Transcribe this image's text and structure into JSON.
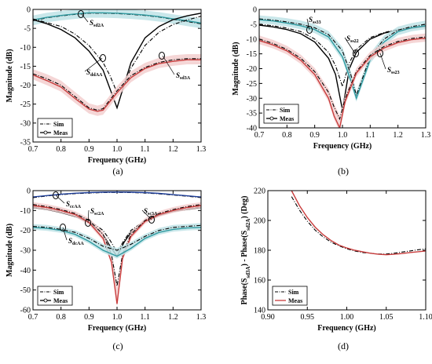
{
  "chart_data": [
    {
      "id": "a",
      "type": "line",
      "panel_label": "(a)",
      "xlabel": "Frequency (GHz)",
      "ylabel": "Magnitude (dB)",
      "xlim": [
        0.7,
        1.3
      ],
      "ylim": [
        -35,
        0
      ],
      "xticks": [
        "0.7",
        "0.8",
        "0.9",
        "1.0",
        "1.1",
        "1.2",
        "1.3"
      ],
      "yticks": [
        "0",
        "-5",
        "-10",
        "-15",
        "-20",
        "-25",
        "-30",
        "-35"
      ],
      "legend": {
        "position": "bottom-left",
        "entries": [
          "Sim",
          "Meas"
        ]
      },
      "annotations": [
        {
          "main": "S",
          "sub": "sd2A"
        },
        {
          "main": "S",
          "sub": "ddAA"
        },
        {
          "main": "S",
          "sub": "sd3A"
        }
      ],
      "series": [
        {
          "label": "S_sd2A",
          "color": "#2f9aa0",
          "band_color": "#bfe3e6",
          "x": [
            0.7,
            0.75,
            0.8,
            0.85,
            0.9,
            0.95,
            1.0,
            1.05,
            1.1,
            1.15,
            1.2,
            1.25,
            1.3
          ],
          "sim": [
            -3.0,
            -2.2,
            -1.7,
            -1.3,
            -1.0,
            -1.0,
            -1.1,
            -1.3,
            -1.6,
            -2.0,
            -2.6,
            -3.2,
            -3.8
          ],
          "meas": [
            -2.8,
            -2.1,
            -1.6,
            -1.2,
            -0.9,
            -0.9,
            -1.0,
            -1.2,
            -1.5,
            -1.9,
            -2.5,
            -3.0,
            -3.6
          ]
        },
        {
          "label": "S_ddAA",
          "color": "#000000",
          "band_color": "",
          "x": [
            0.7,
            0.75,
            0.8,
            0.85,
            0.9,
            0.95,
            0.975,
            1.0,
            1.025,
            1.05,
            1.1,
            1.15,
            1.2,
            1.25,
            1.3
          ],
          "sim": [
            -2.5,
            -3.5,
            -4.5,
            -6.5,
            -9.5,
            -14.0,
            -17.5,
            -22.0,
            -20.0,
            -15.5,
            -9.5,
            -6.0,
            -4.0,
            -2.8,
            -1.8
          ],
          "meas": [
            -2.7,
            -3.8,
            -5.3,
            -7.5,
            -11.0,
            -16.0,
            -21.0,
            -26.0,
            -20.0,
            -14.0,
            -7.5,
            -4.5,
            -2.7,
            -1.7,
            -1.0
          ]
        },
        {
          "label": "S_sd3A",
          "color": "#c83c3c",
          "band_color": "#f3cfcf",
          "x": [
            0.7,
            0.75,
            0.8,
            0.85,
            0.9,
            0.93,
            0.95,
            1.0,
            1.05,
            1.1,
            1.15,
            1.2,
            1.25,
            1.3
          ],
          "sim": [
            -17.0,
            -18.3,
            -20.0,
            -23.0,
            -26.0,
            -26.6,
            -26.2,
            -21.5,
            -17.5,
            -15.3,
            -14.0,
            -13.3,
            -13.0,
            -13.0
          ],
          "meas": [
            -17.3,
            -18.8,
            -20.5,
            -23.5,
            -26.3,
            -26.9,
            -26.6,
            -22.0,
            -18.0,
            -15.6,
            -14.3,
            -13.7,
            -13.3,
            -13.3
          ]
        }
      ]
    },
    {
      "id": "b",
      "type": "line",
      "panel_label": "(b)",
      "xlabel": "Frequency (GHz)",
      "ylabel": "Magnitude (dB)",
      "xlim": [
        0.7,
        1.3
      ],
      "ylim": [
        -40,
        0
      ],
      "xticks": [
        "0.7",
        "0.8",
        "0.9",
        "1.0",
        "1.1",
        "1.2",
        "1.3"
      ],
      "yticks": [
        "0",
        "-5",
        "-10",
        "-15",
        "-20",
        "-25",
        "-30",
        "-35",
        "-40"
      ],
      "legend": {
        "position": "bottom-left",
        "entries": [
          "Sim",
          "Meas"
        ]
      },
      "annotations": [
        {
          "main": "S",
          "sub": "ss33"
        },
        {
          "main": "S",
          "sub": "ss22"
        },
        {
          "main": "S",
          "sub": "ss23"
        }
      ],
      "series": [
        {
          "label": "S_ss33",
          "color": "#000000",
          "band_color": "",
          "x": [
            0.7,
            0.75,
            0.8,
            0.85,
            0.9,
            0.95,
            0.975,
            1.0,
            1.025,
            1.05,
            1.1,
            1.15,
            1.2,
            1.25,
            1.3
          ],
          "sim": [
            -5.0,
            -5.5,
            -6.3,
            -7.5,
            -10.0,
            -14.5,
            -19.0,
            -26.0,
            -18.0,
            -13.5,
            -9.5,
            -7.8,
            -6.7,
            -6.0,
            -5.5
          ],
          "meas": [
            -5.3,
            -5.9,
            -6.8,
            -8.2,
            -11.0,
            -16.5,
            -22.0,
            -34.0,
            -20.0,
            -14.5,
            -10.0,
            -8.0,
            -7.0,
            -6.3,
            -5.8
          ]
        },
        {
          "label": "S_ss22",
          "color": "#2f9aa0",
          "band_color": "#bfe3e6",
          "x": [
            0.7,
            0.75,
            0.8,
            0.85,
            0.9,
            0.95,
            1.0,
            1.03,
            1.05,
            1.1,
            1.15,
            1.2,
            1.25,
            1.3
          ],
          "sim": [
            -3.2,
            -3.6,
            -4.2,
            -5.0,
            -6.2,
            -8.5,
            -14.0,
            -22.0,
            -29.0,
            -16.0,
            -10.0,
            -7.0,
            -5.8,
            -5.0
          ],
          "meas": [
            -3.5,
            -3.9,
            -4.6,
            -5.5,
            -6.8,
            -9.3,
            -16.0,
            -24.0,
            -30.0,
            -17.0,
            -11.0,
            -7.5,
            -6.2,
            -5.5
          ]
        },
        {
          "label": "S_ss23",
          "color": "#c83c3c",
          "band_color": "#f3cfcf",
          "x": [
            0.7,
            0.75,
            0.8,
            0.85,
            0.9,
            0.95,
            0.97,
            0.99,
            1.01,
            1.05,
            1.1,
            1.15,
            1.2,
            1.25,
            1.3
          ],
          "sim": [
            -10.0,
            -11.5,
            -13.5,
            -16.5,
            -21.0,
            -28.0,
            -33.0,
            -37.0,
            -30.0,
            -21.0,
            -15.5,
            -12.5,
            -10.8,
            -9.8,
            -9.3
          ],
          "meas": [
            -10.5,
            -12.0,
            -14.0,
            -17.2,
            -22.0,
            -30.0,
            -36.0,
            -40.0,
            -31.0,
            -21.5,
            -16.0,
            -13.0,
            -11.2,
            -10.2,
            -9.7
          ]
        }
      ]
    },
    {
      "id": "c",
      "type": "line",
      "panel_label": "(c)",
      "xlabel": "Frequency (GHz)",
      "ylabel": "Magnitude (dB)",
      "xlim": [
        0.7,
        1.3
      ],
      "ylim": [
        -60,
        0
      ],
      "xticks": [
        "0.7",
        "0.8",
        "0.9",
        "1.0",
        "1.1",
        "1.2",
        "1.3"
      ],
      "yticks": [
        "0",
        "-10",
        "-20",
        "-30",
        "-40",
        "-50",
        "-60"
      ],
      "legend": {
        "position": "bottom-left",
        "entries": [
          "Sim",
          "Meas"
        ]
      },
      "annotations": [
        {
          "main": "S",
          "sub": "ccAA"
        },
        {
          "main": "S",
          "sub": "sc2A"
        },
        {
          "main": "S",
          "sub": "sc3A"
        },
        {
          "main": "S",
          "sub": "dcAA"
        }
      ],
      "series": [
        {
          "label": "S_ccAA",
          "color": "#1f3f9a",
          "band_color": "",
          "x": [
            0.7,
            0.75,
            0.8,
            0.85,
            0.9,
            0.95,
            1.0,
            1.05,
            1.1,
            1.15,
            1.2,
            1.25,
            1.3
          ],
          "sim": [
            -3.5,
            -2.7,
            -2.0,
            -1.5,
            -1.2,
            -1.0,
            -0.9,
            -1.0,
            -1.2,
            -1.6,
            -2.2,
            -2.8,
            -3.5
          ],
          "meas": [
            -3.2,
            -2.5,
            -1.8,
            -1.3,
            -1.0,
            -0.8,
            -0.7,
            -0.8,
            -1.0,
            -1.4,
            -2.0,
            -2.6,
            -3.2
          ]
        },
        {
          "label": "S_sc2A",
          "color": "#000000",
          "band_color": "",
          "x": [
            0.7,
            0.75,
            0.8,
            0.85,
            0.9,
            0.95,
            0.975,
            1.0,
            1.025,
            1.05,
            1.1,
            1.15,
            1.2,
            1.25,
            1.3
          ],
          "sim": [
            -8.0,
            -9.0,
            -10.5,
            -12.0,
            -15.0,
            -20.0,
            -25.0,
            -31.0,
            -25.0,
            -20.0,
            -15.0,
            -12.0,
            -10.0,
            -9.0,
            -8.0
          ],
          "meas": [
            -8.5,
            -9.5,
            -11.0,
            -13.0,
            -16.0,
            -22.0,
            -28.0,
            -33.0,
            -26.0,
            -21.0,
            -15.5,
            -12.5,
            -10.5,
            -9.5,
            -8.5
          ]
        },
        {
          "label": "S_sc3A",
          "color": "#c83c3c",
          "band_color": "#f3cfcf",
          "x": [
            0.7,
            0.75,
            0.8,
            0.85,
            0.9,
            0.95,
            0.98,
            1.0,
            1.02,
            1.05,
            1.1,
            1.15,
            1.2,
            1.25,
            1.3
          ],
          "sim": [
            -7.0,
            -8.0,
            -9.5,
            -11.5,
            -15.0,
            -22.0,
            -32.0,
            -48.0,
            -32.0,
            -22.0,
            -15.0,
            -11.5,
            -9.5,
            -8.0,
            -7.0
          ],
          "meas": [
            -7.5,
            -8.5,
            -10.0,
            -12.0,
            -16.0,
            -24.0,
            -36.0,
            -57.0,
            -34.0,
            -23.0,
            -15.5,
            -12.0,
            -10.0,
            -8.5,
            -7.5
          ]
        },
        {
          "label": "S_dcAA",
          "color": "#2f9aa0",
          "band_color": "#bfe3e6",
          "x": [
            0.7,
            0.75,
            0.8,
            0.85,
            0.9,
            0.95,
            1.0,
            1.05,
            1.1,
            1.15,
            1.2,
            1.25,
            1.3
          ],
          "sim": [
            -18.0,
            -18.5,
            -19.5,
            -21.0,
            -24.0,
            -28.0,
            -30.0,
            -27.0,
            -23.0,
            -20.0,
            -18.5,
            -18.0,
            -17.5
          ],
          "meas": [
            -18.5,
            -19.0,
            -20.0,
            -22.0,
            -25.5,
            -30.0,
            -33.0,
            -29.0,
            -24.0,
            -21.0,
            -19.5,
            -18.8,
            -18.5
          ]
        }
      ]
    },
    {
      "id": "d",
      "type": "line",
      "panel_label": "(d)",
      "xlabel": "Frequency (GHz)",
      "ylabel": "Phase(S_sd3A) - Phase(S_sd2A)   (Deg)",
      "ylabel_parts": [
        "Phase(S",
        "sd3A",
        ") - Phase(S",
        "sd2A",
        ")   (Deg)"
      ],
      "xlim": [
        0.9,
        1.1
      ],
      "ylim": [
        140,
        220
      ],
      "xticks": [
        "0.90",
        "0.95",
        "1.00",
        "1.05",
        "1.10"
      ],
      "yticks": [
        "220",
        "200",
        "180",
        "160",
        "140"
      ],
      "legend": {
        "position": "bottom-left",
        "entries": [
          "Sim",
          "Meas"
        ]
      },
      "annotations": [],
      "series": [
        {
          "label": "phase_diff",
          "color": "#c83c3c",
          "band_color": "",
          "x": [
            0.93,
            0.94,
            0.95,
            0.96,
            0.97,
            0.98,
            0.99,
            1.0,
            1.01,
            1.02,
            1.03,
            1.04,
            1.05,
            1.06,
            1.07,
            1.08,
            1.09,
            1.1
          ],
          "sim": [
            216.0,
            207.0,
            199.5,
            193.5,
            189.0,
            185.5,
            183.0,
            181.0,
            179.5,
            178.5,
            178.0,
            177.5,
            177.5,
            178.0,
            178.8,
            179.5,
            180.3,
            181.0
          ],
          "meas": [
            220.0,
            210.0,
            202.0,
            195.5,
            190.5,
            186.5,
            183.5,
            181.5,
            180.0,
            179.0,
            178.0,
            177.3,
            177.0,
            177.3,
            177.8,
            178.5,
            179.0,
            179.5
          ]
        }
      ]
    }
  ]
}
